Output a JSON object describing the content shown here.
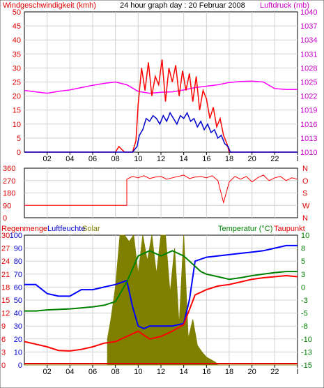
{
  "chart_data": [
    {
      "type": "line",
      "title": "24 hour graph day : 20 Februar 2008",
      "left_label": "Windgeschwindigkeit (kmh)",
      "right_label": "Luftdruck (mb)",
      "y_left": {
        "range": [
          0,
          50
        ],
        "ticks": [
          "0",
          "5",
          "10",
          "15",
          "20",
          "25",
          "30",
          "35",
          "40",
          "45",
          "50"
        ]
      },
      "y_right": {
        "range": [
          1010,
          1040
        ],
        "ticks": [
          "1010",
          "1013",
          "1016",
          "1019",
          "1022",
          "1025",
          "1028",
          "1031",
          "1034",
          "1037",
          "1040"
        ]
      },
      "x_ticks": [
        "02",
        "04",
        "06",
        "08",
        "10",
        "12",
        "14",
        "16",
        "18",
        "20",
        "22",
        "I"
      ],
      "series": [
        {
          "color": "#ff00ff",
          "axis": "right",
          "x": [
            0,
            1,
            2,
            3,
            4,
            5,
            6,
            7,
            8,
            9,
            10,
            11,
            12,
            13,
            14,
            15,
            16,
            17,
            18,
            19,
            20,
            21,
            22,
            23,
            24
          ],
          "values": [
            1023.2,
            1022.9,
            1022.6,
            1023.0,
            1023.3,
            1023.8,
            1024.3,
            1024.7,
            1025.0,
            1024.4,
            1023.0,
            1022.6,
            1022.8,
            1022.9,
            1023.3,
            1023.8,
            1024.1,
            1024.4,
            1024.9,
            1025.1,
            1025.2,
            1025.0,
            1023.6,
            1023.4,
            1023.4
          ]
        },
        {
          "color": "#ff0000",
          "axis": "left",
          "x": [
            0,
            7.5,
            8.0,
            8.3,
            8.8,
            9.2,
            9.5,
            9.8,
            10.0,
            10.3,
            10.6,
            10.9,
            11.2,
            11.5,
            11.8,
            12.1,
            12.4,
            12.7,
            13.0,
            13.3,
            13.6,
            13.9,
            14.2,
            14.5,
            14.8,
            15.1,
            15.4,
            15.7,
            16.0,
            16.3,
            16.6,
            16.9,
            17.2,
            17.5,
            17.8,
            18.0,
            24
          ],
          "values": [
            0,
            0,
            0,
            2,
            0,
            0,
            0,
            4,
            17,
            30,
            22,
            32,
            20,
            27,
            24,
            33,
            18,
            30,
            25,
            31,
            20,
            29,
            22,
            28,
            18,
            27,
            15,
            22,
            19,
            12,
            16,
            9,
            12,
            6,
            3,
            0,
            0
          ]
        },
        {
          "color": "#0000cc",
          "axis": "left",
          "x": [
            0,
            9.5,
            9.9,
            10.1,
            10.4,
            10.7,
            11.0,
            11.3,
            11.6,
            11.9,
            12.2,
            12.5,
            12.8,
            13.1,
            13.4,
            13.7,
            14.0,
            14.3,
            14.6,
            14.9,
            15.2,
            15.5,
            15.8,
            16.1,
            16.4,
            16.7,
            17.0,
            17.3,
            17.6,
            17.9,
            18.1,
            24
          ],
          "values": [
            0,
            0,
            2,
            6,
            8,
            12,
            11,
            13,
            12,
            10,
            13,
            11,
            14,
            12,
            10,
            13,
            12,
            14,
            11,
            12,
            9,
            11,
            8,
            10,
            7,
            8,
            5,
            6,
            3,
            2,
            0,
            0
          ]
        }
      ]
    },
    {
      "type": "line",
      "y_ticks": [
        "0",
        "90",
        "180",
        "270",
        "360"
      ],
      "right_ticks": [
        "N",
        "W",
        "S",
        "O",
        "N"
      ],
      "range": [
        0,
        360
      ],
      "series": [
        {
          "color": "#ff0000",
          "x": [
            0,
            9.0,
            9.0,
            9.5,
            10,
            10.5,
            11,
            11.5,
            12,
            12.5,
            13,
            13.5,
            14,
            14.5,
            15,
            15.5,
            16,
            16.5,
            17,
            17.5,
            18,
            18.5,
            19,
            19.5,
            20,
            20.5,
            21,
            21.5,
            22,
            22.5,
            23,
            23.5,
            24
          ],
          "values": [
            90,
            90,
            280,
            300,
            290,
            305,
            285,
            295,
            300,
            280,
            290,
            300,
            310,
            285,
            295,
            300,
            290,
            305,
            270,
            110,
            260,
            300,
            280,
            300,
            260,
            290,
            310,
            270,
            290,
            300,
            270,
            290,
            280
          ]
        }
      ]
    },
    {
      "type": "line",
      "left_label_1": "Regenmenge",
      "left_label_2": "Luftfeuchte",
      "left_label_3": "Solar",
      "right_label_1": "Temperatur (°C)",
      "right_label_2": "Taupunkt",
      "y_rain_ticks": [
        "0",
        "3",
        "6",
        "9",
        "12",
        "15",
        "18",
        "21",
        "24",
        "27",
        "30"
      ],
      "y_hum_ticks": [
        "0",
        "10",
        "20",
        "30",
        "40",
        "50",
        "60",
        "70",
        "80",
        "90",
        "100"
      ],
      "y_temp_ticks": [
        "-15",
        "-13",
        "-10",
        "-8",
        "-5",
        "-3",
        "0",
        "3",
        "5",
        "8",
        "10"
      ],
      "temp_range": [
        -15,
        10
      ],
      "solar": {
        "color": "#808000",
        "x": [
          0,
          7.3,
          7.3,
          7.6,
          8.0,
          8.4,
          8.8,
          9.2,
          9.6,
          10.0,
          10.4,
          10.8,
          11.2,
          11.6,
          12.0,
          12.4,
          12.8,
          13.2,
          13.6,
          14.0,
          14.4,
          14.8,
          15.2,
          15.6,
          16.0,
          16.4,
          16.8,
          17.0,
          24
        ],
        "values": [
          0,
          0,
          20,
          35,
          60,
          100,
          100,
          95,
          100,
          70,
          100,
          80,
          100,
          70,
          100,
          100,
          55,
          90,
          30,
          100,
          20,
          35,
          15,
          10,
          6,
          4,
          2,
          0,
          0
        ]
      },
      "series": [
        {
          "name": "Luftfeuchte",
          "color": "#0000ff",
          "scale": "hum",
          "x": [
            0,
            1,
            2,
            3,
            4,
            5,
            6,
            7,
            8,
            9,
            9.5,
            10,
            10.5,
            11,
            12,
            13,
            14,
            14.5,
            15,
            16,
            17,
            18,
            19,
            20,
            21,
            22,
            23,
            24
          ],
          "values": [
            62,
            62,
            55,
            53,
            53,
            58,
            58,
            60,
            62,
            65,
            45,
            30,
            28,
            30,
            30,
            30,
            32,
            50,
            80,
            83,
            84,
            85,
            86,
            87,
            88,
            90,
            92,
            92
          ]
        },
        {
          "name": "Temperatur (°C)",
          "color": "#008000",
          "scale": "temp",
          "x": [
            0,
            1,
            2,
            3,
            4,
            5,
            6,
            7,
            8,
            9,
            10,
            11,
            12,
            13,
            14,
            15,
            15.5,
            16,
            17,
            18,
            19,
            20,
            21,
            22,
            23,
            24
          ],
          "values": [
            -4.6,
            -4.6,
            -4.4,
            -4.3,
            -4.2,
            -4.0,
            -3.8,
            -3.5,
            -2.8,
            1.0,
            6.0,
            7.0,
            6.0,
            7.0,
            6.0,
            4.0,
            3.0,
            2.5,
            2.0,
            1.5,
            1.8,
            2.2,
            2.5,
            2.8,
            3.0,
            3.0
          ]
        },
        {
          "name": "Taupunkt",
          "color": "#ff0000",
          "scale": "temp",
          "x": [
            0,
            1,
            2,
            3,
            4,
            5,
            6,
            7,
            8,
            9,
            10,
            11,
            12,
            13,
            14,
            15,
            16,
            17,
            18,
            19,
            20,
            21,
            22,
            23,
            24
          ],
          "values": [
            -10.5,
            -11,
            -11.5,
            -12.2,
            -12.3,
            -12.0,
            -11.5,
            -10.8,
            -10.5,
            -9.5,
            -8.5,
            -10.0,
            -9.5,
            -8.5,
            -7.2,
            -1.5,
            -0.5,
            0.2,
            0.5,
            1.0,
            1.5,
            1.8,
            2.0,
            2.2,
            2.0
          ]
        }
      ]
    }
  ]
}
